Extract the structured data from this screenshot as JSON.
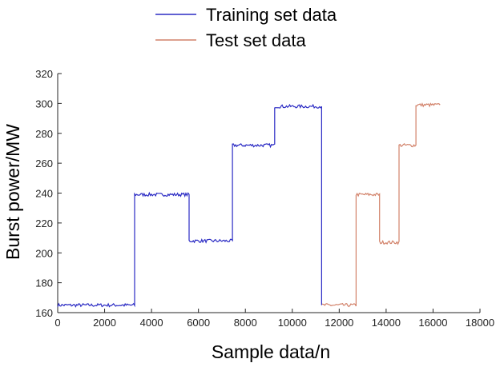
{
  "chart_data": {
    "type": "line",
    "title": "",
    "xlabel": "Sample data/n",
    "ylabel": "Burst power/MW",
    "xlim": [
      0,
      18000
    ],
    "ylim": [
      160,
      320
    ],
    "xticks": [
      0,
      2000,
      4000,
      6000,
      8000,
      10000,
      12000,
      14000,
      16000,
      18000
    ],
    "yticks": [
      160,
      180,
      200,
      220,
      240,
      260,
      280,
      300,
      320
    ],
    "grid": false,
    "legend_position": "top-center",
    "series": [
      {
        "name": "Training set data",
        "color": "#2b2bc4",
        "segments": [
          {
            "x_start": 0,
            "x_end": 3280,
            "level": 165
          },
          {
            "x_start": 3280,
            "x_end": 5600,
            "level": 239
          },
          {
            "x_start": 5600,
            "x_end": 7450,
            "level": 208
          },
          {
            "x_start": 7450,
            "x_end": 9250,
            "level": 272
          },
          {
            "x_start": 9250,
            "x_end": 11250,
            "level": 298
          }
        ]
      },
      {
        "name": "Test set data",
        "color": "#d2826a",
        "segments": [
          {
            "x_start": 11250,
            "x_end": 12720,
            "level": 165
          },
          {
            "x_start": 12720,
            "x_end": 13720,
            "level": 239
          },
          {
            "x_start": 13720,
            "x_end": 14550,
            "level": 207
          },
          {
            "x_start": 14550,
            "x_end": 15270,
            "level": 272
          },
          {
            "x_start": 15270,
            "x_end": 16300,
            "level": 299
          }
        ]
      }
    ]
  }
}
